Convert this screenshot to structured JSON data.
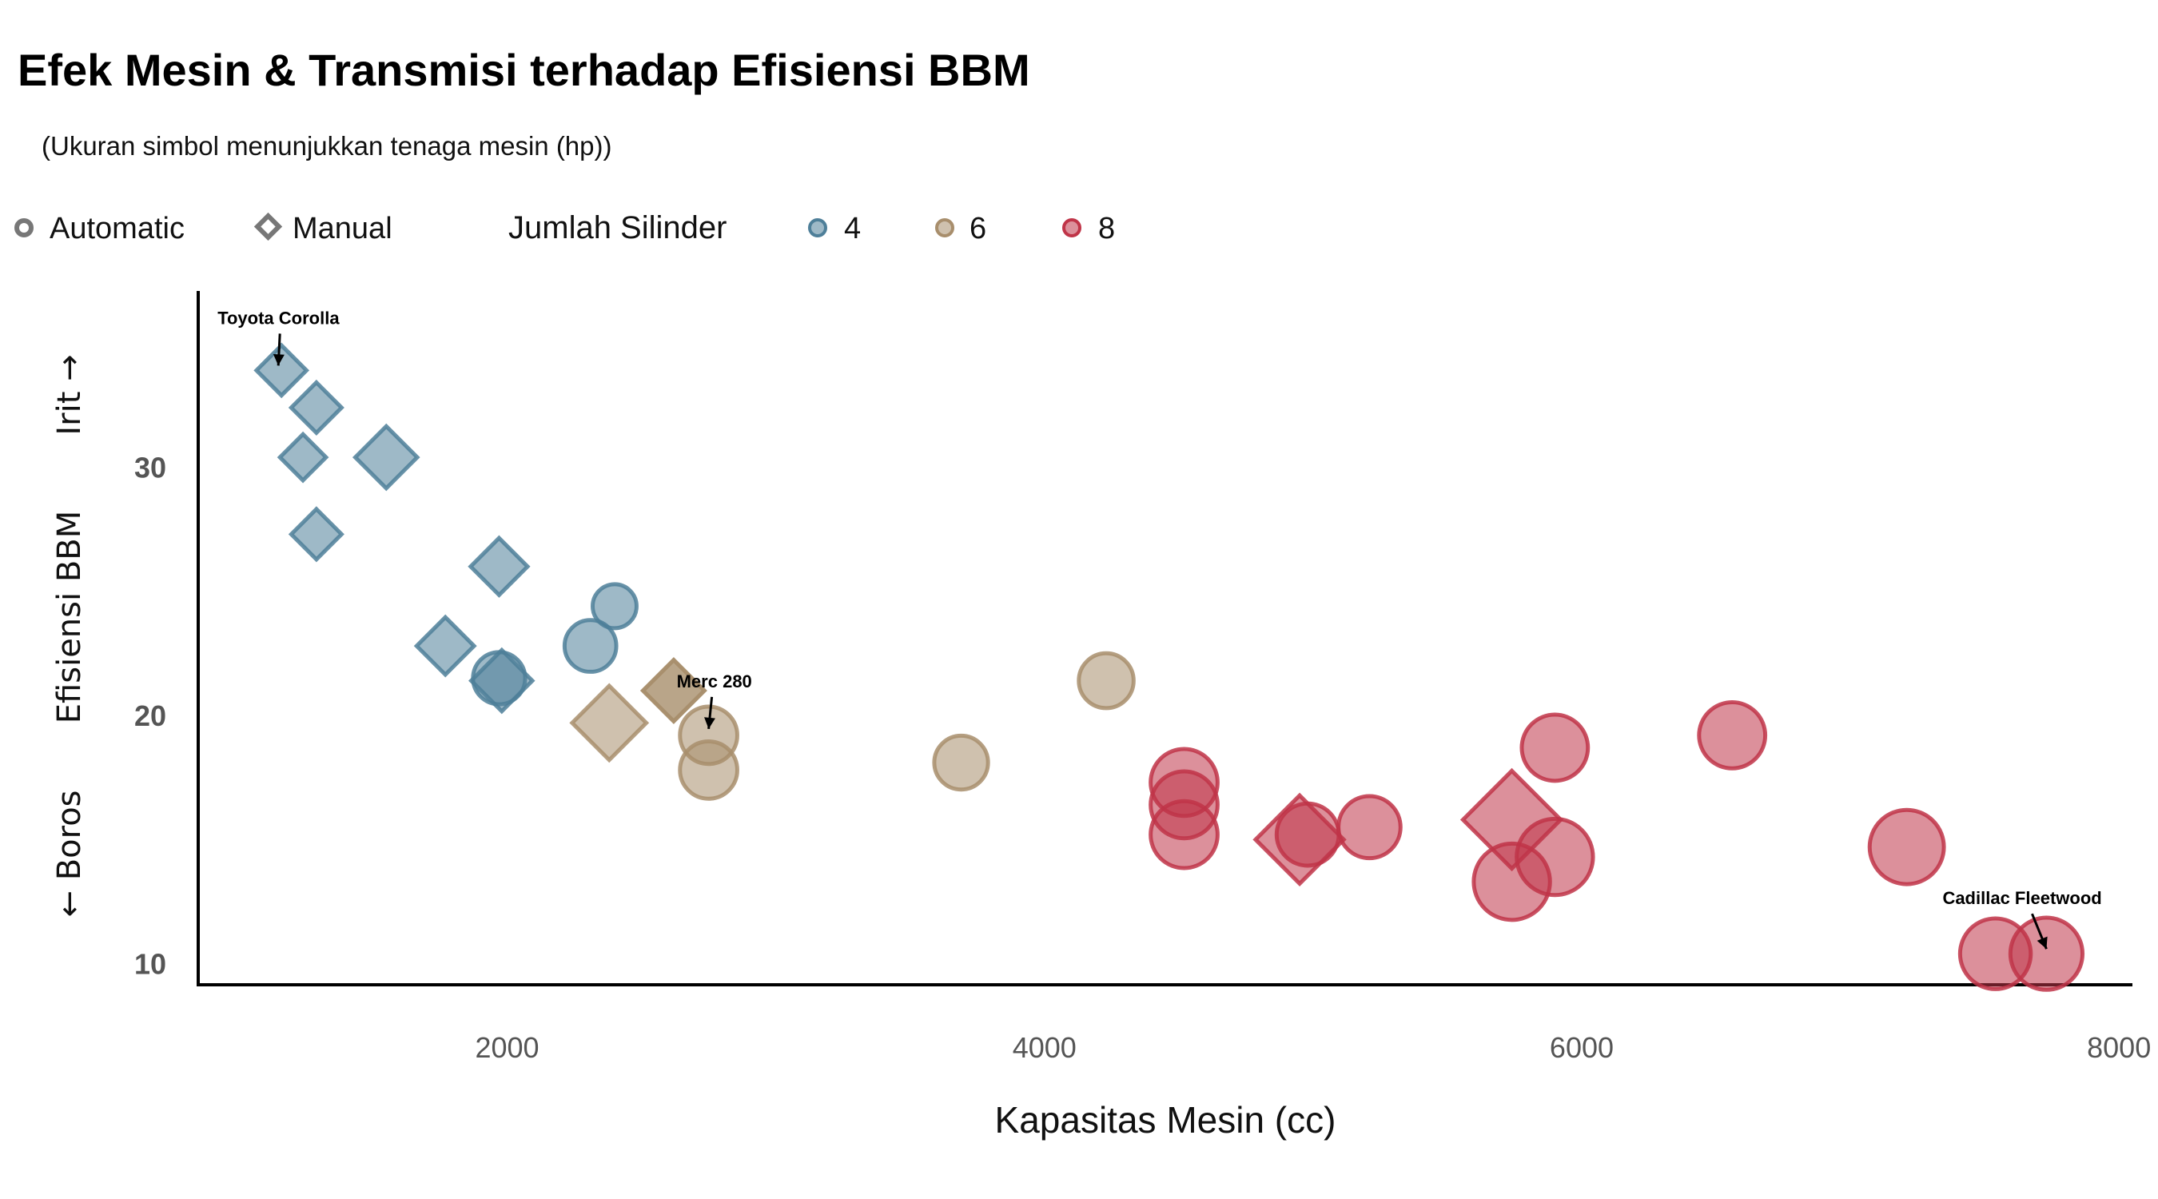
{
  "chart_data": {
    "type": "scatter",
    "title": "Efek Mesin & Transmisi terhadap Efisiensi BBM",
    "subtitle": "(Ukuran simbol menunjukkan tenaga mesin (hp))",
    "xlabel": "Kapasitas Mesin (cc)",
    "ylabel": "Efisiensi BBM",
    "ylabel_top": "Irit →",
    "ylabel_bottom": "← Boros",
    "xlim": [
      850,
      8050
    ],
    "ylim": [
      9.15,
      37.1
    ],
    "x_ticks": [
      2000,
      4000,
      6000,
      8000
    ],
    "y_ticks": [
      10,
      20,
      30
    ],
    "grid": false,
    "legend_position": "top",
    "legend": {
      "shape_items": [
        {
          "label": "Automatic",
          "shape": "circle"
        },
        {
          "label": "Manual",
          "shape": "diamond"
        }
      ],
      "color_title": "Jumlah Silinder",
      "color_items": [
        {
          "label": "4",
          "cyl": 4
        },
        {
          "label": "6",
          "cyl": 6
        },
        {
          "label": "8",
          "cyl": 8
        }
      ]
    },
    "colors": {
      "4": "#4e7f99",
      "6": "#a88e6c",
      "8": "#c03448",
      "legend_shape": "#777777",
      "axis": "#000000"
    },
    "annotations": [
      {
        "label": "Toyota Corolla",
        "x": 1160,
        "y": 33.9
      },
      {
        "label": "Merc 280",
        "x": 2750,
        "y": 19.2
      },
      {
        "label": "Cadillac Fleetwood",
        "x": 7730,
        "y": 10.4
      }
    ],
    "series": [
      {
        "name": "4",
        "points": [
          {
            "x": 1160,
            "y": 33.9,
            "hp": 65,
            "transmission": "Manual"
          },
          {
            "x": 1290,
            "y": 32.4,
            "hp": 66,
            "transmission": "Manual"
          },
          {
            "x": 1240,
            "y": 30.4,
            "hp": 52,
            "transmission": "Manual"
          },
          {
            "x": 1550,
            "y": 30.4,
            "hp": 113,
            "transmission": "Manual"
          },
          {
            "x": 1290,
            "y": 27.3,
            "hp": 66,
            "transmission": "Manual"
          },
          {
            "x": 1970,
            "y": 26.0,
            "hp": 91,
            "transmission": "Manual"
          },
          {
            "x": 1770,
            "y": 22.8,
            "hp": 93,
            "transmission": "Manual"
          },
          {
            "x": 1980,
            "y": 21.4,
            "hp": 109,
            "transmission": "Manual"
          },
          {
            "x": 2400,
            "y": 24.4,
            "hp": 62,
            "transmission": "Automatic"
          },
          {
            "x": 2310,
            "y": 22.8,
            "hp": 95,
            "transmission": "Automatic"
          },
          {
            "x": 1970,
            "y": 21.5,
            "hp": 97,
            "transmission": "Automatic"
          }
        ]
      },
      {
        "name": "6",
        "points": [
          {
            "x": 2620,
            "y": 21.0,
            "hp": 110,
            "transmission": "Manual"
          },
          {
            "x": 2620,
            "y": 21.0,
            "hp": 110,
            "transmission": "Manual"
          },
          {
            "x": 2380,
            "y": 19.7,
            "hp": 175,
            "transmission": "Manual"
          },
          {
            "x": 2750,
            "y": 19.2,
            "hp": 123,
            "transmission": "Automatic"
          },
          {
            "x": 2750,
            "y": 17.8,
            "hp": 123,
            "transmission": "Automatic"
          },
          {
            "x": 4230,
            "y": 21.4,
            "hp": 110,
            "transmission": "Automatic"
          },
          {
            "x": 3690,
            "y": 18.1,
            "hp": 105,
            "transmission": "Automatic"
          }
        ]
      },
      {
        "name": "8",
        "points": [
          {
            "x": 5900,
            "y": 18.7,
            "hp": 175,
            "transmission": "Automatic"
          },
          {
            "x": 6560,
            "y": 19.2,
            "hp": 175,
            "transmission": "Automatic"
          },
          {
            "x": 4520,
            "y": 17.3,
            "hp": 180,
            "transmission": "Automatic"
          },
          {
            "x": 4520,
            "y": 16.4,
            "hp": 180,
            "transmission": "Automatic"
          },
          {
            "x": 4520,
            "y": 15.2,
            "hp": 180,
            "transmission": "Automatic"
          },
          {
            "x": 4980,
            "y": 15.2,
            "hp": 150,
            "transmission": "Automatic"
          },
          {
            "x": 5210,
            "y": 15.5,
            "hp": 150,
            "transmission": "Automatic"
          },
          {
            "x": 5900,
            "y": 14.3,
            "hp": 245,
            "transmission": "Automatic"
          },
          {
            "x": 5740,
            "y": 13.3,
            "hp": 245,
            "transmission": "Automatic"
          },
          {
            "x": 7210,
            "y": 14.7,
            "hp": 230,
            "transmission": "Automatic"
          },
          {
            "x": 7540,
            "y": 10.4,
            "hp": 205,
            "transmission": "Automatic"
          },
          {
            "x": 7730,
            "y": 10.4,
            "hp": 215,
            "transmission": "Automatic"
          },
          {
            "x": 4950,
            "y": 15.0,
            "hp": 264,
            "transmission": "Manual"
          },
          {
            "x": 5740,
            "y": 15.8,
            "hp": 335,
            "transmission": "Manual"
          }
        ]
      }
    ]
  }
}
